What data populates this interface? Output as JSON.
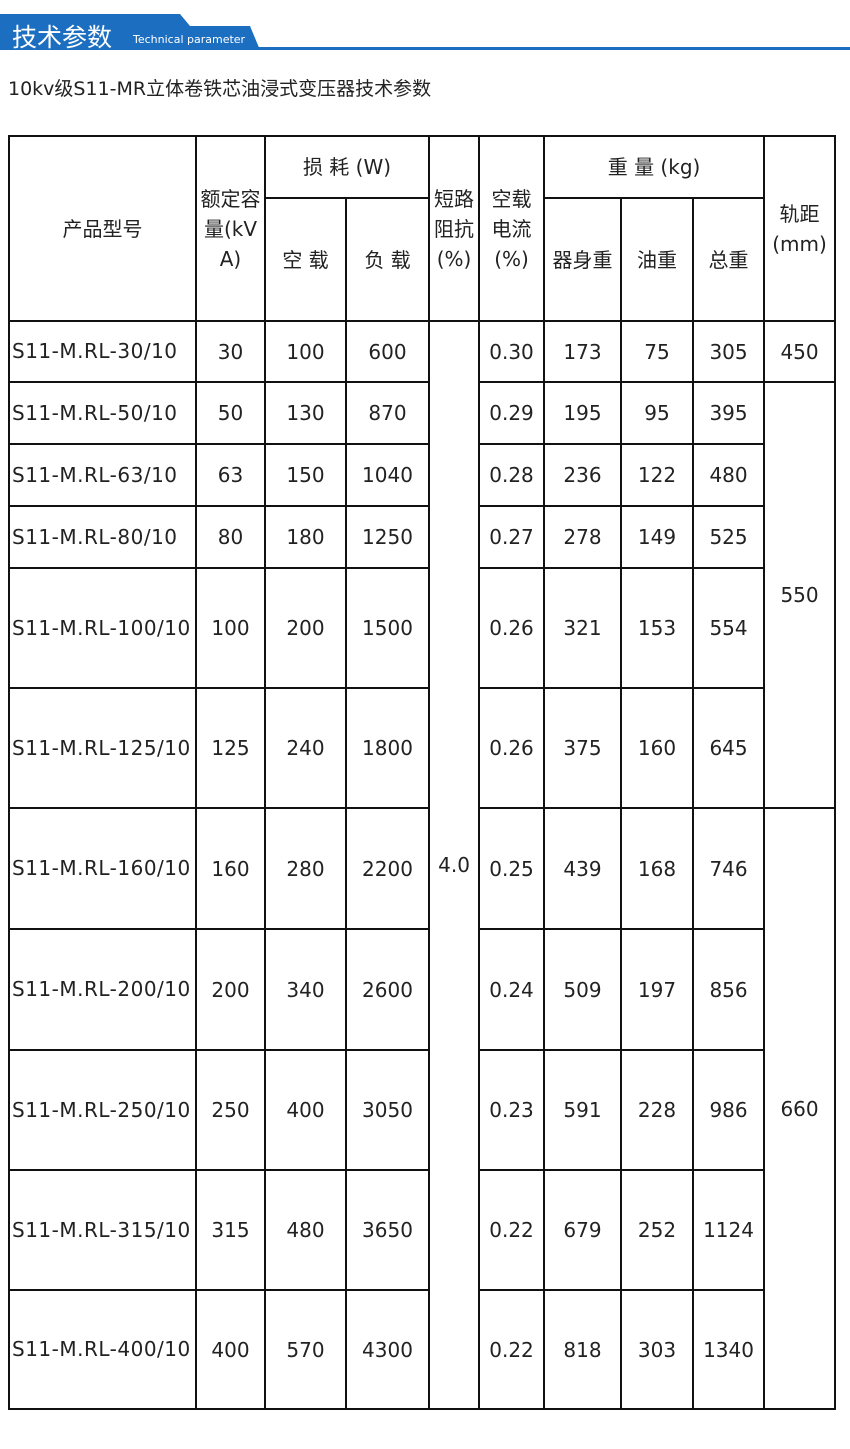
{
  "header": {
    "title": "技术参数",
    "subtitle": "Technical parameter"
  },
  "heading": "10kv级S11-MR立体卷铁芯油浸式变压器技术参数",
  "table": {
    "columns": {
      "model": "产品型号",
      "capacity": "额定容量(kVA)",
      "loss": "损 耗 (W)",
      "loss_noload": "空 载",
      "loss_load": "负 载",
      "impedance": "短路阻抗(%)",
      "current": "空载电流(%)",
      "weight": "重 量 (kg)",
      "weight_body": "器身重",
      "weight_oil": "油重",
      "weight_total": "总重",
      "gauge": "轨距(mm)"
    },
    "rows": [
      [
        "S11-M.RL-30/10",
        "30",
        "100",
        "600",
        "0.30",
        "173",
        "75",
        "305"
      ],
      [
        "S11-M.RL-50/10",
        "50",
        "130",
        "870",
        "0.29",
        "195",
        "95",
        "395"
      ],
      [
        "S11-M.RL-63/10",
        "63",
        "150",
        "1040",
        "0.28",
        "236",
        "122",
        "480"
      ],
      [
        "S11-M.RL-80/10",
        "80",
        "180",
        "1250",
        "0.27",
        "278",
        "149",
        "525"
      ],
      [
        "S11-M.RL-100/10",
        "100",
        "200",
        "1500",
        "0.26",
        "321",
        "153",
        "554"
      ],
      [
        "S11-M.RL-125/10",
        "125",
        "240",
        "1800",
        "0.26",
        "375",
        "160",
        "645"
      ],
      [
        "S11-M.RL-160/10",
        "160",
        "280",
        "2200",
        "0.25",
        "439",
        "168",
        "746"
      ],
      [
        "S11-M.RL-200/10",
        "200",
        "340",
        "2600",
        "0.24",
        "509",
        "197",
        "856"
      ],
      [
        "S11-M.RL-250/10",
        "250",
        "400",
        "3050",
        "0.23",
        "591",
        "228",
        "986"
      ],
      [
        "S11-M.RL-315/10",
        "315",
        "480",
        "3650",
        "0.22",
        "679",
        "252",
        "1124"
      ],
      [
        "S11-M.RL-400/10",
        "400",
        "570",
        "4300",
        "0.22",
        "818",
        "303",
        "1340"
      ]
    ],
    "impedance": "4.0",
    "gauge": [
      "450",
      "550",
      "660"
    ]
  }
}
